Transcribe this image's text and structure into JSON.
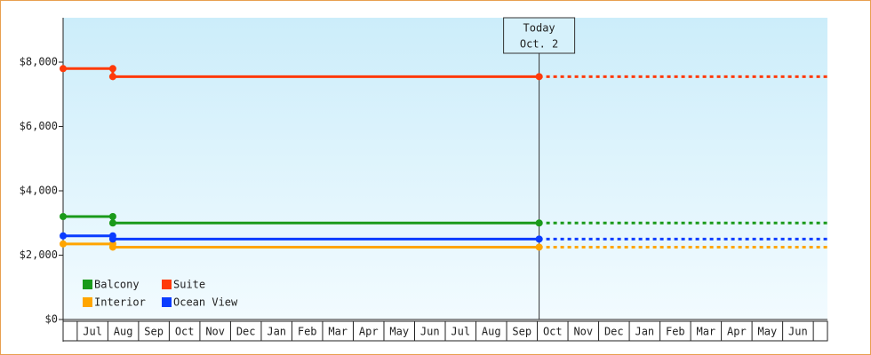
{
  "chart_data": {
    "type": "line",
    "categories": [
      "Jul",
      "Aug",
      "Sep",
      "Oct",
      "Nov",
      "Dec",
      "Jan",
      "Feb",
      "Mar",
      "Apr",
      "May",
      "Jun",
      "Jul",
      "Aug",
      "Sep",
      "Oct",
      "Nov",
      "Dec",
      "Jan",
      "Feb",
      "Mar",
      "Apr",
      "May",
      "Jun"
    ],
    "xlim": [
      -0.46,
      24.46
    ],
    "ylim": [
      0,
      9380
    ],
    "yticks": [
      {
        "value": 0,
        "label": "$0"
      },
      {
        "value": 2000,
        "label": "$2,000"
      },
      {
        "value": 4000,
        "label": "$4,000"
      },
      {
        "value": 6000,
        "label": "$6,000"
      },
      {
        "value": 8000,
        "label": "$8,000"
      }
    ],
    "today": {
      "x": 15.06,
      "label": "Today",
      "date": "Oct. 2"
    },
    "series": [
      {
        "name": "Balcony",
        "color": "#1a9a1a",
        "x": [
          -0.46,
          1.16,
          1.16,
          15.06
        ],
        "values": [
          3200,
          3200,
          3000,
          3000
        ]
      },
      {
        "name": "Suite",
        "color": "#ff3a0a",
        "x": [
          -0.46,
          1.16,
          1.16,
          15.06
        ],
        "values": [
          7800,
          7800,
          7550,
          7550
        ]
      },
      {
        "name": "Interior",
        "color": "#ffa500",
        "x": [
          -0.46,
          1.16,
          1.16,
          15.06
        ],
        "values": [
          2350,
          2350,
          2250,
          2250
        ]
      },
      {
        "name": "Ocean View",
        "color": "#0a3cff",
        "x": [
          -0.46,
          1.16,
          1.16,
          15.06
        ],
        "values": [
          2600,
          2600,
          2500,
          2500
        ]
      }
    ]
  }
}
